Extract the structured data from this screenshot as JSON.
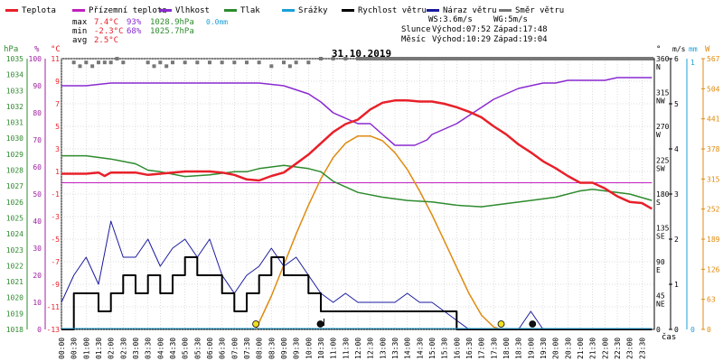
{
  "legend": [
    {
      "key": "teplota",
      "label": "Teplota",
      "color": "#e8202a"
    },
    {
      "key": "prizemni",
      "label": "Přízemní teplota",
      "color": "#c020c0"
    },
    {
      "key": "vlhkost",
      "label": "Vlhkost",
      "color": "#8a2ad0"
    },
    {
      "key": "tlak",
      "label": "Tlak",
      "color": "#2e8b2e"
    },
    {
      "key": "srazky",
      "label": "Srážky",
      "color": "#1aa0d8"
    },
    {
      "key": "rychlost",
      "label": "Rychlost větru",
      "color": "#000000"
    },
    {
      "key": "naraz",
      "label": "Náraz větru",
      "color": "#1a1aa0"
    },
    {
      "key": "smer",
      "label": "Směr větru",
      "color": "#777777"
    }
  ],
  "stats": {
    "max": {
      "label": "max",
      "temp": "7.4°C",
      "hum": "93%",
      "press": "1028.9hPa",
      "rain": "0.0mm"
    },
    "min": {
      "label": "min",
      "temp": "-2.3°C",
      "hum": "68%",
      "press": "1025.7hPa"
    },
    "avg": {
      "label": "avg",
      "temp": "2.5°C"
    }
  },
  "wind_info": {
    "ws": "WS:3.6m/s",
    "wg": "WG:5m/s"
  },
  "sun": {
    "label": "Slunce",
    "rise": "Východ:07:52",
    "set": "Západ:17:48"
  },
  "moon": {
    "label": "Měsíc",
    "rise": "Východ:10:29",
    "set": "Západ:19:04"
  },
  "date": "31.10.2019",
  "colors": {
    "grid": "#bbbbbb",
    "press_axis": "#2e8b2e",
    "temp_axis": "#e8202a",
    "hum_axis": "#a020a0",
    "wind_axis": "#000000",
    "rain_axis": "#1aa0d8",
    "sun_axis": "#e08a10",
    "sun_curve": "#e08a10",
    "dir_marks": "#777777"
  },
  "chart_data": {
    "type": "line",
    "x_labels": [
      "00:00",
      "00:30",
      "01:00",
      "01:30",
      "02:00",
      "02:30",
      "03:00",
      "03:30",
      "04:00",
      "04:30",
      "05:00",
      "05:30",
      "06:00",
      "06:30",
      "07:00",
      "07:30",
      "08:00",
      "08:30",
      "09:00",
      "09:30",
      "10:00",
      "10:30",
      "11:00",
      "11:30",
      "12:00",
      "12:30",
      "13:00",
      "13:30",
      "14:00",
      "14:30",
      "15:00",
      "15:30",
      "16:00",
      "16:30",
      "17:00",
      "17:30",
      "18:00",
      "18:30",
      "19:00",
      "19:30",
      "20:00",
      "20:30",
      "21:00",
      "21:30",
      "22:00",
      "22:30",
      "23:00",
      "23:30"
    ],
    "x_axis_label": "čas",
    "axes": {
      "pressure": {
        "unit": "hPa",
        "range": [
          1018,
          1035
        ],
        "ticks": [
          "1035",
          "1034",
          "1033",
          "1032",
          "1031",
          "1030",
          "1029",
          "1028",
          "1027",
          "1026",
          "1025",
          "1024",
          "1023",
          "1022",
          "1021",
          "1020",
          "1019",
          "1018"
        ]
      },
      "humidity": {
        "unit": "%",
        "range": [
          0,
          100
        ],
        "ticks": [
          "100",
          "90",
          "80",
          "70",
          "60",
          "50",
          "40",
          "30",
          "20",
          "10",
          "0"
        ]
      },
      "temperature": {
        "unit": "°C",
        "range": [
          -13,
          11
        ],
        "ticks": [
          "11",
          "9",
          "7",
          "5",
          "3",
          "1",
          "-1",
          "-3",
          "-5",
          "-7",
          "-9",
          "-11",
          "-13"
        ]
      },
      "direction": {
        "unit": "°",
        "ticks": [
          {
            "deg": "360",
            "dir": "N"
          },
          {
            "deg": "315",
            "dir": "NW"
          },
          {
            "deg": "270",
            "dir": "W"
          },
          {
            "deg": "225",
            "dir": "SW"
          },
          {
            "deg": "180",
            "dir": "S"
          },
          {
            "deg": "135",
            "dir": "SE"
          },
          {
            "deg": "90",
            "dir": "E"
          },
          {
            "deg": "45",
            "dir": "NE"
          },
          {
            "deg": "0",
            "dir": ""
          }
        ]
      },
      "wind": {
        "unit": "m/s",
        "range": [
          0,
          6
        ],
        "ticks": [
          "6",
          "5",
          "4",
          "3",
          "2",
          "1",
          "0"
        ]
      },
      "rain": {
        "unit": "mm",
        "range": [
          0,
          1
        ],
        "ticks": [
          "1",
          "0"
        ]
      },
      "solar": {
        "unit": "W",
        "range": [
          0,
          567
        ],
        "ticks": [
          "567",
          "504",
          "441",
          "378",
          "315",
          "252",
          "189",
          "126",
          "63",
          "0"
        ]
      }
    },
    "series": [
      {
        "name": "Teplota",
        "key": "teplota",
        "unit": "°C",
        "x": [
          0,
          0.5,
          1,
          1.5,
          1.75,
          2,
          2.5,
          3,
          3.5,
          4,
          4.5,
          5,
          5.5,
          6,
          6.5,
          7,
          7.5,
          8,
          8.5,
          9,
          9.5,
          10,
          10.5,
          11,
          11.5,
          12,
          12.5,
          13,
          13.5,
          14,
          14.5,
          15,
          15.5,
          16,
          16.5,
          17,
          17.5,
          18,
          18.5,
          19,
          19.5,
          20,
          20.5,
          21,
          21.5,
          22,
          22.5,
          23,
          23.5,
          23.9
        ],
        "y": [
          0.8,
          0.8,
          0.8,
          0.9,
          0.6,
          0.9,
          0.9,
          0.9,
          0.7,
          0.8,
          0.9,
          1,
          1,
          1,
          0.9,
          0.7,
          0.3,
          0.2,
          0.6,
          0.9,
          1.7,
          2.5,
          3.5,
          4.5,
          5.2,
          5.6,
          6.5,
          7.1,
          7.3,
          7.3,
          7.2,
          7.2,
          7,
          6.7,
          6.3,
          5.8,
          5,
          4.3,
          3.4,
          2.7,
          1.9,
          1.3,
          0.6,
          0,
          0,
          -0.5,
          -1.2,
          -1.7,
          -1.8,
          -2.3
        ]
      },
      {
        "name": "Vlhkost",
        "key": "vlhkost",
        "unit": "%",
        "x": [
          0,
          1,
          2,
          3,
          4,
          5,
          6,
          7,
          8,
          9,
          10,
          10.5,
          11,
          11.5,
          12,
          12.5,
          13,
          13.5,
          14,
          14.3,
          14.8,
          15,
          15.5,
          16,
          16.5,
          17,
          17.5,
          18,
          18.5,
          19,
          19.5,
          20,
          20.5,
          21,
          21.5,
          22,
          22.5,
          23,
          23.9
        ],
        "y": [
          90,
          90,
          91,
          91,
          91,
          91,
          91,
          91,
          91,
          90,
          87,
          84,
          80,
          78,
          76,
          76,
          72,
          68,
          68,
          68,
          70,
          72,
          74,
          76,
          79,
          82,
          85,
          87,
          89,
          90,
          91,
          91,
          92,
          92,
          92,
          92,
          93,
          93,
          93
        ]
      },
      {
        "name": "Tlak",
        "key": "tlak",
        "unit": "hPa",
        "x": [
          0,
          1,
          2,
          3,
          3.5,
          4,
          5,
          6,
          7,
          7.5,
          8,
          9,
          10,
          10.5,
          11,
          12,
          13,
          14,
          15,
          16,
          17,
          17.5,
          18,
          19,
          20,
          20.5,
          21,
          21.5,
          22,
          23,
          23.9
        ],
        "y": [
          1028.9,
          1028.9,
          1028.7,
          1028.4,
          1028,
          1027.9,
          1027.6,
          1027.7,
          1027.9,
          1027.9,
          1028.1,
          1028.3,
          1028.1,
          1027.9,
          1027.3,
          1026.6,
          1026.3,
          1026.1,
          1026.0,
          1025.8,
          1025.7,
          1025.8,
          1025.9,
          1026.1,
          1026.3,
          1026.5,
          1026.7,
          1026.8,
          1026.7,
          1026.5,
          1026.1
        ]
      },
      {
        "name": "Přízemní teplota",
        "key": "prizemni",
        "unit": "°C",
        "x": [
          0,
          23.9
        ],
        "y": [
          0,
          0
        ]
      },
      {
        "name": "Rychlost větru",
        "key": "rychlost",
        "unit": "m/s",
        "x": [
          0,
          0.5,
          1,
          1.5,
          2,
          2.5,
          3,
          3.5,
          4,
          4.5,
          5,
          5.5,
          6,
          6.5,
          7,
          7.5,
          8,
          8.5,
          9,
          9.5,
          10,
          10.5,
          11,
          11.5,
          12,
          12.5,
          13,
          13.5,
          14,
          14.5,
          15,
          15.5,
          16,
          16.5,
          17,
          17.5,
          18,
          18.5,
          19,
          19.5,
          20,
          20.5,
          21,
          21.5,
          22,
          22.5,
          23,
          23.5,
          23.9
        ],
        "y": [
          0,
          0.8,
          0.8,
          0.4,
          0.8,
          1.2,
          0.8,
          1.2,
          0.8,
          1.2,
          1.6,
          1.2,
          1.2,
          0.8,
          0.4,
          0.8,
          1.2,
          1.6,
          1.2,
          1.2,
          0.8,
          0.4,
          0.4,
          0.4,
          0.4,
          0.4,
          0.4,
          0.4,
          0.4,
          0.4,
          0.4,
          0.4,
          0,
          0,
          0,
          0,
          0,
          0,
          0,
          0,
          0,
          0,
          0,
          0,
          0,
          0,
          0,
          0,
          0
        ]
      },
      {
        "name": "Náraz větru",
        "key": "naraz",
        "unit": "m/s",
        "x": [
          0,
          0.5,
          1,
          1.5,
          2,
          2.5,
          3,
          3.5,
          4,
          4.5,
          5,
          5.5,
          6,
          6.5,
          7,
          7.5,
          8,
          8.5,
          9,
          9.5,
          10,
          10.5,
          11,
          11.5,
          12,
          12.5,
          13,
          13.5,
          14,
          14.5,
          15,
          15.5,
          16,
          16.5,
          17,
          17.5,
          18,
          18.5,
          19,
          19.5,
          20,
          20.5,
          21,
          21.5,
          22,
          22.5,
          23,
          23.5,
          23.9
        ],
        "y": [
          0.6,
          1.2,
          1.6,
          1.0,
          2.4,
          1.6,
          1.6,
          2.0,
          1.4,
          1.8,
          2.0,
          1.6,
          2.0,
          1.2,
          0.8,
          1.2,
          1.4,
          1.8,
          1.4,
          1.6,
          1.2,
          0.8,
          0.6,
          0.8,
          0.6,
          0.6,
          0.6,
          0.6,
          0.8,
          0.6,
          0.6,
          0.4,
          0.2,
          0,
          0,
          0,
          0,
          0,
          0.4,
          0,
          0,
          0,
          0,
          0,
          0,
          0,
          0,
          0,
          0
        ]
      },
      {
        "name": "Srážky",
        "key": "srazky",
        "unit": "mm",
        "x": [
          0,
          23.9
        ],
        "y": [
          0,
          0
        ]
      },
      {
        "name": "Solar",
        "key": "solar",
        "unit": "W",
        "x": [
          7.87,
          8.5,
          9,
          9.5,
          10,
          10.5,
          11,
          11.5,
          12,
          12.5,
          13,
          13.5,
          14,
          14.5,
          15,
          15.5,
          16,
          16.5,
          17,
          17.5,
          17.8
        ],
        "y": [
          0,
          70,
          135,
          200,
          260,
          315,
          360,
          390,
          405,
          405,
          395,
          370,
          335,
          290,
          240,
          185,
          130,
          75,
          30,
          5,
          0
        ]
      },
      {
        "name": "Směr větru",
        "key": "smer",
        "unit": "°",
        "x": [
          0.5,
          0.75,
          1,
          1.25,
          1.5,
          1.75,
          2,
          2.25,
          2.5,
          3.5,
          3.75,
          4.0,
          4.25,
          4.5,
          5,
          5.5,
          6,
          6.5,
          7,
          7.5,
          8,
          8.5,
          9,
          9.25,
          9.5,
          10,
          10.5,
          11,
          11.5,
          12,
          12.5,
          13,
          13.5,
          14,
          14.5,
          15,
          15.5,
          16,
          16.5,
          17,
          17.5,
          18,
          18.5,
          19,
          19.5,
          20,
          20.5,
          21,
          21.5,
          22,
          22.5,
          23,
          23.5,
          23.9
        ],
        "y": [
          355,
          350,
          355,
          350,
          355,
          355,
          355,
          360,
          355,
          355,
          350,
          355,
          350,
          355,
          355,
          355,
          355,
          355,
          355,
          355,
          355,
          350,
          355,
          350,
          355,
          355,
          360,
          360,
          360,
          360,
          360,
          360,
          360,
          360,
          360,
          360,
          360,
          360,
          360,
          360,
          360,
          360,
          360,
          360,
          360,
          360,
          360,
          360,
          360,
          360,
          360,
          360,
          360,
          360
        ]
      }
    ],
    "events": [
      {
        "label": "sunrise",
        "x": 7.87
      },
      {
        "label": "sunset",
        "x": 17.8
      },
      {
        "label": "moonrise",
        "x": 10.48
      },
      {
        "label": "moonset",
        "x": 19.07
      }
    ]
  }
}
